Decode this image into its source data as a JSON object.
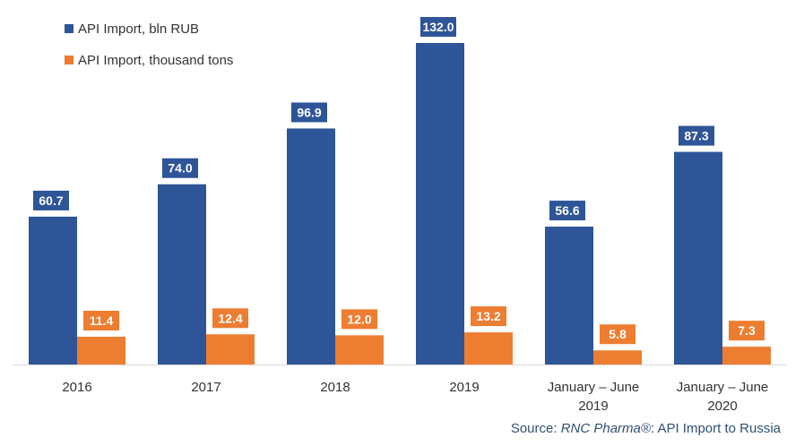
{
  "chart_data": {
    "type": "bar",
    "categories": [
      "2016",
      "2017",
      "2018",
      "2019",
      "January – June 2019",
      "January – June 2020"
    ],
    "category_lines": [
      [
        "2016"
      ],
      [
        "2017"
      ],
      [
        "2018"
      ],
      [
        "2019"
      ],
      [
        "January – June",
        "2019"
      ],
      [
        "January – June",
        "2020"
      ]
    ],
    "series": [
      {
        "name": "API Import, bln RUB",
        "values": [
          60.7,
          74.0,
          96.9,
          132.0,
          56.6,
          87.3
        ],
        "color": "#2e5597"
      },
      {
        "name": "API Import, thousand tons",
        "values": [
          11.4,
          12.4,
          12.0,
          13.2,
          5.8,
          7.3
        ],
        "color": "#ed7d31"
      }
    ],
    "data_labels": [
      [
        "60.7",
        "74.0",
        "96.9",
        "132.0",
        "56.6",
        "87.3"
      ],
      [
        "11.4",
        "12.4",
        "12.0",
        "13.2",
        "5.8",
        "7.3"
      ]
    ],
    "ylim": [
      0,
      145
    ],
    "grid": false,
    "legend_position": "top-left"
  },
  "source": {
    "prefix": "Source: ",
    "brand": "RNC Pharma®",
    "suffix": ": API Import to Russia"
  }
}
